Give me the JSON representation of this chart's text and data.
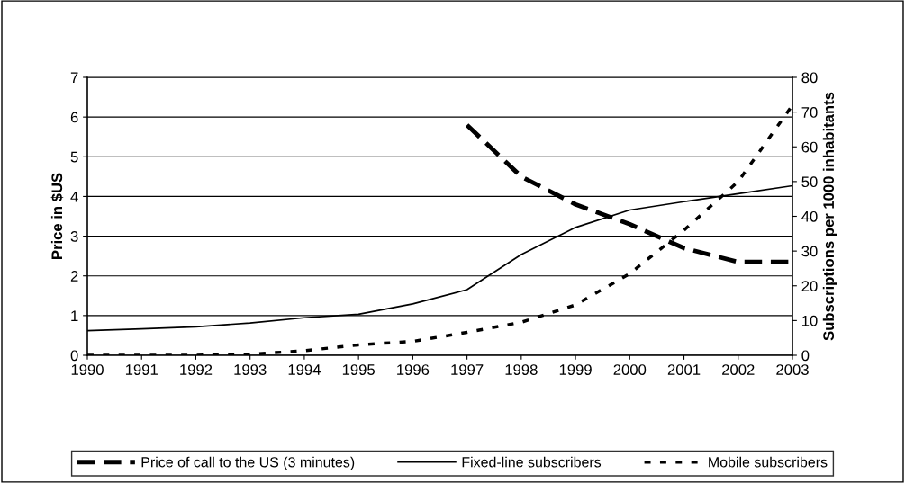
{
  "chart_data": {
    "type": "line",
    "ylabel": "Price in $US",
    "y2label": "Subscriptions per 1000 inhabitants",
    "categories": [
      "1990",
      "1991",
      "1992",
      "1993",
      "1994",
      "1995",
      "1996",
      "1997",
      "1998",
      "1999",
      "2000",
      "2001",
      "2002",
      "2003"
    ],
    "series": [
      {
        "name": "Price of call to the US (3 minutes)",
        "color": "#000000",
        "line_style": "dashed",
        "values": [
          null,
          null,
          null,
          null,
          null,
          null,
          null,
          5.8,
          4.5,
          3.8,
          3.3,
          2.7,
          2.35,
          2.35
        ]
      },
      {
        "name": "Fixed-line subscribers",
        "color": "#000000",
        "line_style": "solid",
        "axis": "y2",
        "values": [
          7.1,
          7.6,
          8.2,
          9.3,
          10.8,
          11.8,
          14.8,
          18.9,
          29,
          36.8,
          41.8,
          44.2,
          46.5,
          48.8
        ]
      },
      {
        "name": "Mobile subscribers",
        "color": "#000000",
        "line_style": "dotted",
        "axis": "y2",
        "values": [
          0,
          0,
          0,
          0.3,
          1.3,
          3,
          4,
          6.6,
          9.5,
          14.5,
          23.5,
          36,
          50,
          72
        ]
      }
    ],
    "ylim": [
      0,
      7
    ],
    "yticks": [
      0,
      1,
      2,
      3,
      4,
      5,
      6,
      7
    ],
    "y2lim": [
      0,
      80
    ],
    "y2ticks": [
      0,
      10,
      20,
      30,
      40,
      50,
      60,
      70,
      80
    ],
    "grid": "y",
    "legend": "bottom"
  }
}
